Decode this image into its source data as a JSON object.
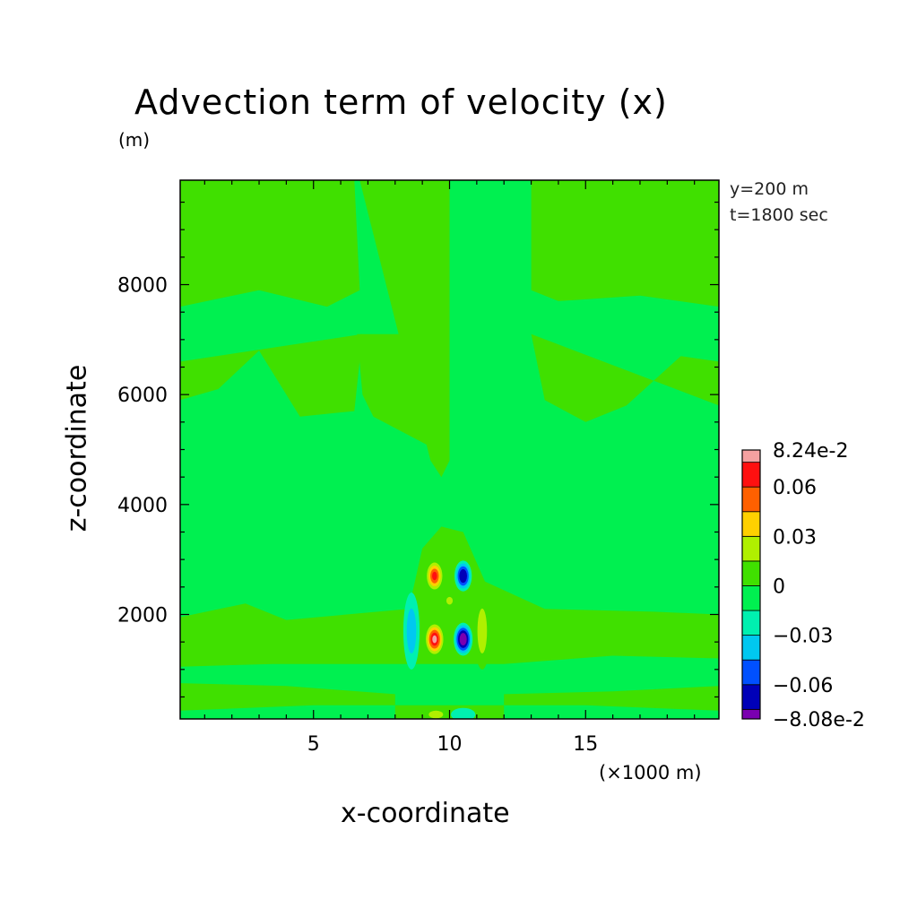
{
  "chart_data": {
    "type": "heatmap",
    "title": "Advection term of velocity (x)",
    "xlabel": "x-coordinate",
    "ylabel": "z-coordinate",
    "x_unit_label": "(×1000 m)",
    "z_unit_label": "(m)",
    "annotations": [
      "y=200 m",
      "t=1800 sec"
    ],
    "xlim": [
      0.1,
      19.9
    ],
    "ylim": [
      100,
      9900
    ],
    "x_ticks": [
      5,
      10,
      15
    ],
    "x_tick_labels": [
      "5",
      "10",
      "15"
    ],
    "y_ticks": [
      2000,
      4000,
      6000,
      8000
    ],
    "y_tick_labels": [
      "2000",
      "4000",
      "6000",
      "8000"
    ],
    "colorbar": {
      "min": -0.0808,
      "max": 0.0824,
      "levels": [
        -0.0808,
        -0.075,
        -0.06,
        -0.045,
        -0.03,
        -0.015,
        0,
        0.015,
        0.03,
        0.045,
        0.06,
        0.075,
        0.0824
      ],
      "colors": [
        "#7a00b0",
        "#0000b8",
        "#0050ff",
        "#00c8f0",
        "#00f0b0",
        "#00f050",
        "#40e000",
        "#b0f000",
        "#ffd000",
        "#ff6000",
        "#ff1010",
        "#f5a0a0"
      ],
      "tick_labels": [
        {
          "value": 0.0824,
          "label": "8.24e-2"
        },
        {
          "value": 0.06,
          "label": "0.06"
        },
        {
          "value": 0.03,
          "label": "0.03"
        },
        {
          "value": 0,
          "label": "0"
        },
        {
          "value": -0.03,
          "label": "−0.03"
        },
        {
          "value": -0.06,
          "label": "−0.06"
        },
        {
          "value": -0.0808,
          "label": "−8.08e-2"
        }
      ]
    },
    "field_background": {
      "value": -0.005,
      "color": "#00f050"
    },
    "regions": [
      {
        "name": "upper-left-positive-band",
        "value": 0.005,
        "color": "#40e000",
        "polygon": [
          [
            0.1,
            9900
          ],
          [
            6.5,
            9900
          ],
          [
            6.7,
            7900
          ],
          [
            5.5,
            7600
          ],
          [
            3.0,
            7900
          ],
          [
            0.1,
            7600
          ]
        ]
      },
      {
        "name": "upper-right-positive-band",
        "value": 0.005,
        "color": "#40e000",
        "polygon": [
          [
            13,
            9900
          ],
          [
            19.9,
            9900
          ],
          [
            19.9,
            7600
          ],
          [
            17.0,
            7800
          ],
          [
            14.0,
            7700
          ],
          [
            13.0,
            7900
          ]
        ]
      },
      {
        "name": "central-column-positive",
        "value": 0.005,
        "color": "#40e000",
        "polygon": [
          [
            6.7,
            9900
          ],
          [
            10.0,
            9900
          ],
          [
            10.0,
            4800
          ],
          [
            9.7,
            4500
          ],
          [
            9.3,
            4800
          ],
          [
            9.3,
            4800
          ]
        ]
      },
      {
        "name": "central-column-positive-lower",
        "value": 0.005,
        "color": "#40e000",
        "polygon": [
          [
            6.6,
            7100
          ],
          [
            10.0,
            7100
          ],
          [
            10.0,
            5000
          ],
          [
            9.5,
            5000
          ],
          [
            7.2,
            5600
          ],
          [
            6.8,
            6000
          ]
        ]
      },
      {
        "name": "mid-wave-left",
        "value": 0.005,
        "color": "#40e000",
        "polygon": [
          [
            0.1,
            6600
          ],
          [
            0.1,
            5900
          ],
          [
            1.5,
            6100
          ],
          [
            3.0,
            6800
          ],
          [
            4.5,
            5600
          ],
          [
            6.5,
            5700
          ],
          [
            6.8,
            7100
          ]
        ]
      },
      {
        "name": "mid-wave-right",
        "value": 0.005,
        "color": "#40e000",
        "polygon": [
          [
            13.0,
            7100
          ],
          [
            13.5,
            5900
          ],
          [
            15.0,
            5500
          ],
          [
            16.5,
            5800
          ],
          [
            18.5,
            6700
          ],
          [
            19.9,
            6600
          ],
          [
            19.9,
            5800
          ]
        ]
      },
      {
        "name": "low-band-positive",
        "value": 0.004,
        "color": "#40e000",
        "polygon": [
          [
            0.1,
            1950
          ],
          [
            2.5,
            2200
          ],
          [
            4.0,
            1900
          ],
          [
            8.5,
            2100
          ],
          [
            9.0,
            3200
          ],
          [
            9.7,
            3600
          ],
          [
            10.5,
            3500
          ],
          [
            11.3,
            2600
          ],
          [
            13.5,
            2100
          ],
          [
            17.5,
            2050
          ],
          [
            19.9,
            2000
          ],
          [
            19.9,
            1200
          ],
          [
            16.0,
            1250
          ],
          [
            12.0,
            1100
          ],
          [
            8.0,
            1100
          ],
          [
            3.5,
            1100
          ],
          [
            0.1,
            1050
          ]
        ]
      },
      {
        "name": "near-surface-band",
        "value": 0.004,
        "color": "#40e000",
        "polygon": [
          [
            0.1,
            750
          ],
          [
            4.0,
            700
          ],
          [
            8.0,
            550
          ],
          [
            8.0,
            100
          ],
          [
            12.0,
            100
          ],
          [
            12.0,
            550
          ],
          [
            16.0,
            600
          ],
          [
            19.9,
            700
          ],
          [
            19.9,
            250
          ],
          [
            15.0,
            350
          ],
          [
            5.0,
            350
          ],
          [
            0.1,
            250
          ]
        ]
      }
    ],
    "cells": [
      {
        "name": "core-upper-positive",
        "x": 9.45,
        "z": 2700,
        "rx": 0.35,
        "rz": 300,
        "value": 0.07
      },
      {
        "name": "core-upper-negative",
        "x": 10.5,
        "z": 2700,
        "rx": 0.32,
        "rz": 280,
        "value": -0.07
      },
      {
        "name": "core-lower-positive",
        "x": 9.45,
        "z": 1550,
        "rx": 0.38,
        "rz": 320,
        "value": 0.0824
      },
      {
        "name": "core-lower-negative",
        "x": 10.5,
        "z": 1550,
        "rx": 0.35,
        "rz": 300,
        "value": -0.0808
      },
      {
        "name": "side-left-negative",
        "x": 8.6,
        "z": 1700,
        "rx": 0.3,
        "rz": 700,
        "value": -0.03
      },
      {
        "name": "side-right-positive",
        "x": 11.2,
        "z": 1700,
        "rx": 0.3,
        "rz": 700,
        "value": 0.03
      },
      {
        "name": "mid-positive-small",
        "x": 10.0,
        "z": 2250,
        "rx": 0.2,
        "rz": 120,
        "value": 0.02
      },
      {
        "name": "surface-right-negative",
        "x": 10.5,
        "z": 180,
        "rx": 0.45,
        "rz": 120,
        "value": -0.025
      },
      {
        "name": "surface-left-positive",
        "x": 9.5,
        "z": 180,
        "rx": 0.45,
        "rz": 120,
        "value": 0.025
      }
    ]
  }
}
